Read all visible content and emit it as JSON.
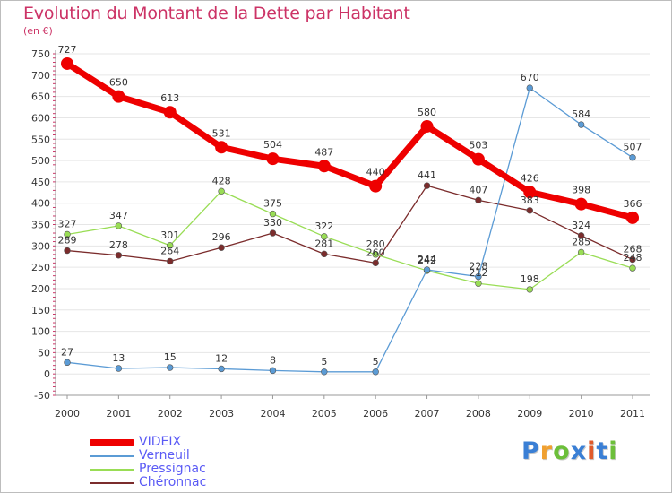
{
  "title": "Evolution du Montant de la Dette par Habitant",
  "unit": "(en €)",
  "logo": {
    "text": "Proxiti",
    "colors": [
      "#3a7fd5",
      "#f0a030",
      "#6cbf3a",
      "#3a7fd5",
      "#e05a2a",
      "#3a7fd5",
      "#6cbf3a"
    ]
  },
  "chart_data": {
    "type": "line",
    "title": "Evolution du Montant de la Dette par Habitant",
    "ylabel": "(en €)",
    "xlabel": "",
    "x": [
      "2000",
      "2001",
      "2002",
      "2003",
      "2004",
      "2005",
      "2006",
      "2007",
      "2008",
      "2009",
      "2010",
      "2011"
    ],
    "ylim": [
      -50,
      750
    ],
    "yticks": [
      -50,
      0,
      50,
      100,
      150,
      200,
      250,
      300,
      350,
      400,
      450,
      500,
      550,
      600,
      650,
      700,
      750
    ],
    "grid": "horizontal",
    "legend_position": "bottom-left",
    "series": [
      {
        "name": "VIDEIX",
        "color": "#ee0000",
        "values": [
          727,
          650,
          613,
          531,
          504,
          487,
          440,
          580,
          503,
          426,
          398,
          366
        ]
      },
      {
        "name": "Verneuil",
        "color": "#5b9bd5",
        "values": [
          27,
          13,
          15,
          12,
          8,
          5,
          5,
          244,
          228,
          670,
          584,
          507
        ]
      },
      {
        "name": "Pressignac",
        "color": "#99dd55",
        "values": [
          327,
          347,
          301,
          428,
          375,
          322,
          280,
          242,
          212,
          198,
          285,
          248
        ]
      },
      {
        "name": "Chéronnac",
        "color": "#7b2c2c",
        "values": [
          289,
          278,
          264,
          296,
          330,
          281,
          260,
          441,
          407,
          383,
          324,
          268
        ]
      }
    ]
  }
}
